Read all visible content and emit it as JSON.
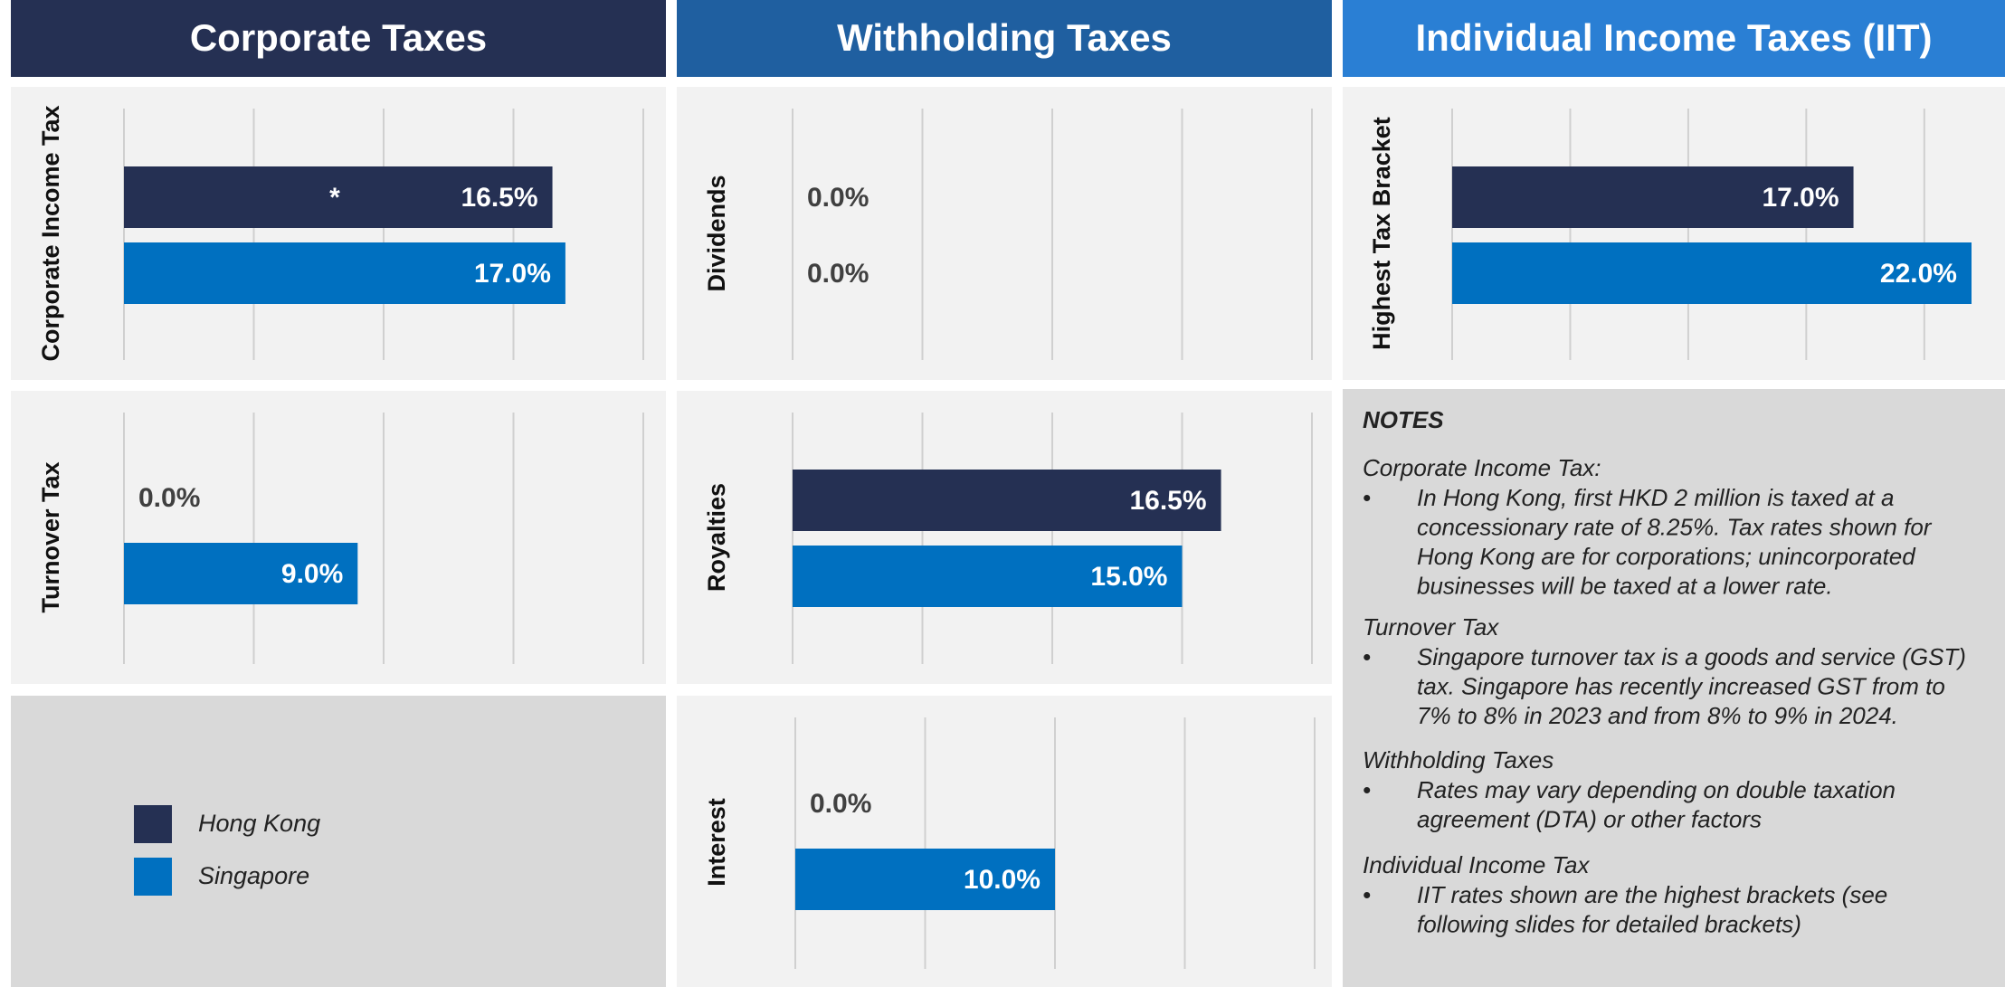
{
  "headers": [
    "Corporate Taxes",
    "Withholding Taxes",
    "Individual Income Taxes (IIT)"
  ],
  "chart_data": [
    {
      "type": "bar",
      "y_label": "Corporate Income Tax",
      "annotation": "*",
      "xlim": [
        0,
        20
      ],
      "xticks": [
        0,
        5,
        10,
        15,
        20
      ],
      "series": [
        {
          "name": "Hong Kong",
          "color": "#253053",
          "values": [
            16.5
          ],
          "value_labels": [
            "16.5%"
          ]
        },
        {
          "name": "Singapore",
          "color": "#0070c0",
          "values": [
            17.0
          ],
          "value_labels": [
            "17.0%"
          ]
        }
      ]
    },
    {
      "type": "bar",
      "y_label": "Turnover Tax",
      "xlim": [
        0,
        20
      ],
      "xticks": [
        0,
        5,
        10,
        15,
        20
      ],
      "series": [
        {
          "name": "Hong Kong",
          "color": "#253053",
          "values": [
            0.0
          ],
          "value_labels": [
            "0.0%"
          ]
        },
        {
          "name": "Singapore",
          "color": "#0070c0",
          "values": [
            9.0
          ],
          "value_labels": [
            "9.0%"
          ]
        }
      ]
    },
    {
      "type": "bar",
      "y_label": "Dividends",
      "xlim": [
        0,
        20
      ],
      "xticks": [
        0,
        5,
        10,
        15,
        20
      ],
      "series": [
        {
          "name": "Hong Kong",
          "color": "#253053",
          "values": [
            0.0
          ],
          "value_labels": [
            "0.0%"
          ]
        },
        {
          "name": "Singapore",
          "color": "#0070c0",
          "values": [
            0.0
          ],
          "value_labels": [
            "0.0%"
          ]
        }
      ]
    },
    {
      "type": "bar",
      "y_label": "Royalties",
      "xlim": [
        0,
        20
      ],
      "xticks": [
        0,
        5,
        10,
        15,
        20
      ],
      "series": [
        {
          "name": "Hong Kong",
          "color": "#253053",
          "values": [
            16.5
          ],
          "value_labels": [
            "16.5%"
          ]
        },
        {
          "name": "Singapore",
          "color": "#0070c0",
          "values": [
            15.0
          ],
          "value_labels": [
            "15.0%"
          ]
        }
      ]
    },
    {
      "type": "bar",
      "y_label": "Interest",
      "xlim": [
        0,
        20
      ],
      "xticks": [
        0,
        5,
        10,
        15,
        20
      ],
      "series": [
        {
          "name": "Hong Kong",
          "color": "#253053",
          "values": [
            0.0
          ],
          "value_labels": [
            "0.0%"
          ]
        },
        {
          "name": "Singapore",
          "color": "#0070c0",
          "values": [
            10.0
          ],
          "value_labels": [
            "10.0%"
          ]
        }
      ]
    },
    {
      "type": "bar",
      "y_label": "Highest Tax Bracket",
      "xlim": [
        0,
        22
      ],
      "xticks": [
        0,
        5,
        10,
        15,
        20
      ],
      "series": [
        {
          "name": "Hong Kong",
          "color": "#253053",
          "values": [
            17.0
          ],
          "value_labels": [
            "17.0%"
          ]
        },
        {
          "name": "Singapore",
          "color": "#0070c0",
          "values": [
            22.0
          ],
          "value_labels": [
            "22.0%"
          ]
        }
      ]
    }
  ],
  "notes": {
    "title": "NOTES",
    "sections": [
      {
        "heading": "Corporate Income Tax:",
        "lines": [
          "In Hong Kong, first HKD 2 million is taxed at a",
          "concessionary rate of 8.25%. Tax rates shown for",
          "Hong Kong are for corporations; unincorporated",
          "businesses will be taxed at a lower rate."
        ]
      },
      {
        "heading": "Turnover Tax",
        "lines": [
          "Singapore turnover tax is a goods and service (GST)",
          "tax. Singapore has recently increased GST from to",
          "7% to 8% in 2023 and from 8% to 9% in 2024."
        ]
      },
      {
        "heading": "Withholding Taxes",
        "lines": [
          "Rates may vary depending on double taxation",
          "agreement (DTA) or other factors"
        ]
      },
      {
        "heading": "Individual Income Tax",
        "lines": [
          "IIT rates shown are the highest brackets (see",
          "following slides for detailed brackets)"
        ]
      }
    ]
  }
}
